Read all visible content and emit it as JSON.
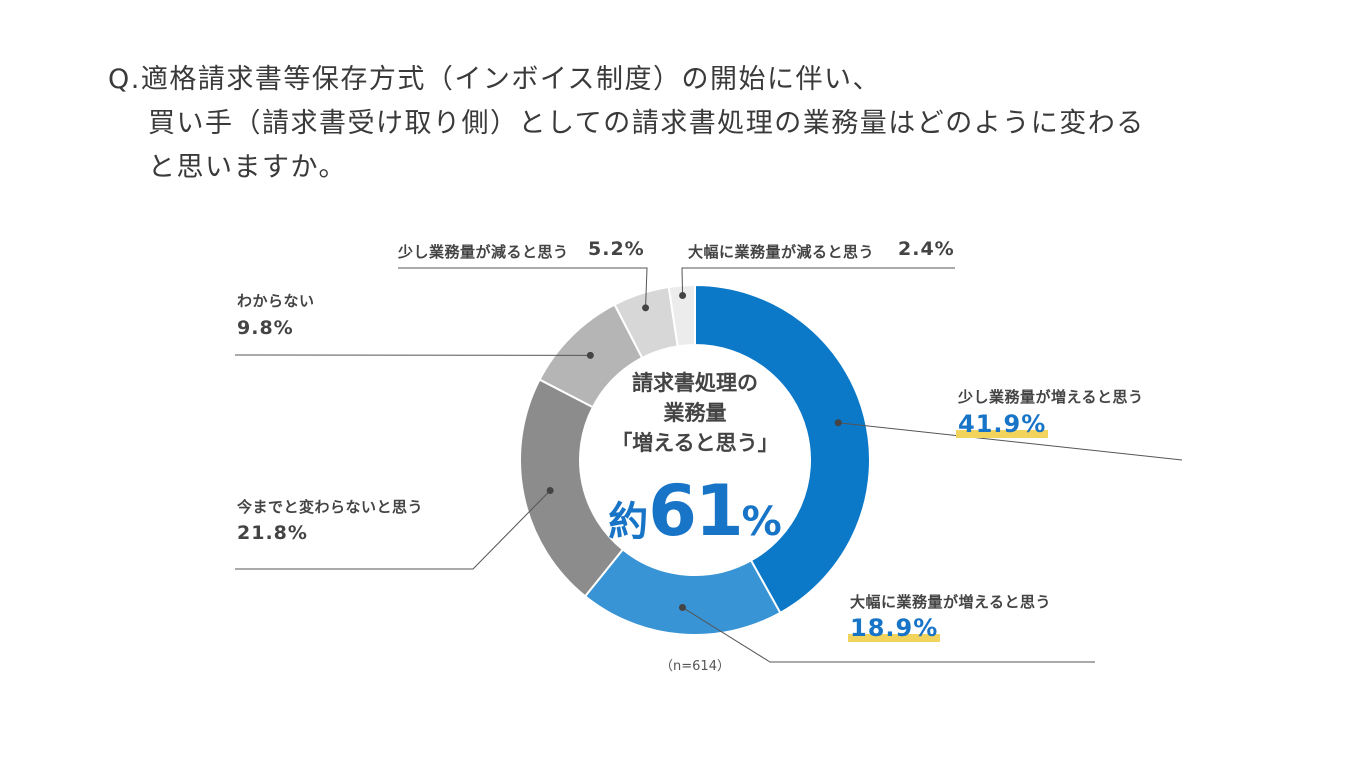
{
  "question": {
    "line1": "Q.適格請求書等保存方式（インボイス制度）の開始に伴い、",
    "line2": "買い手（請求書受け取り側）としての請求書処理の業務量はどのように変わる",
    "line3": "と思いますか。"
  },
  "center": {
    "line1": "請求書処理の",
    "line2": "業務量",
    "line3": "「増えると思う」",
    "prefix": "約",
    "value": "61",
    "unit": "%"
  },
  "note": "（n=614）",
  "chart_data": {
    "type": "pie",
    "donut": true,
    "title": "Q.適格請求書等保存方式（インボイス制度）の開始に伴い、買い手（請求書受け取り側）としての請求書処理の業務量はどのように変わると思いますか。",
    "sample_size": 614,
    "slices": [
      {
        "label": "少し業務量が増えると思う",
        "value": 41.9,
        "display": "41.9%",
        "color": "#0b78c8",
        "highlight": true
      },
      {
        "label": "大幅に業務量が増えると思う",
        "value": 18.9,
        "display": "18.9%",
        "color": "#3894d4",
        "highlight": true
      },
      {
        "label": "今までと変わらないと思う",
        "value": 21.8,
        "display": "21.8%",
        "color": "#8c8c8c",
        "highlight": false
      },
      {
        "label": "わからない",
        "value": 9.8,
        "display": "9.8%",
        "color": "#b5b5b5",
        "highlight": false
      },
      {
        "label": "少し業務量が減ると思う",
        "value": 5.2,
        "display": "5.2%",
        "color": "#d7d7d7",
        "highlight": false
      },
      {
        "label": "大幅に業務量が減ると思う",
        "value": 2.4,
        "display": "2.4%",
        "color": "#ececec",
        "highlight": false
      }
    ]
  }
}
